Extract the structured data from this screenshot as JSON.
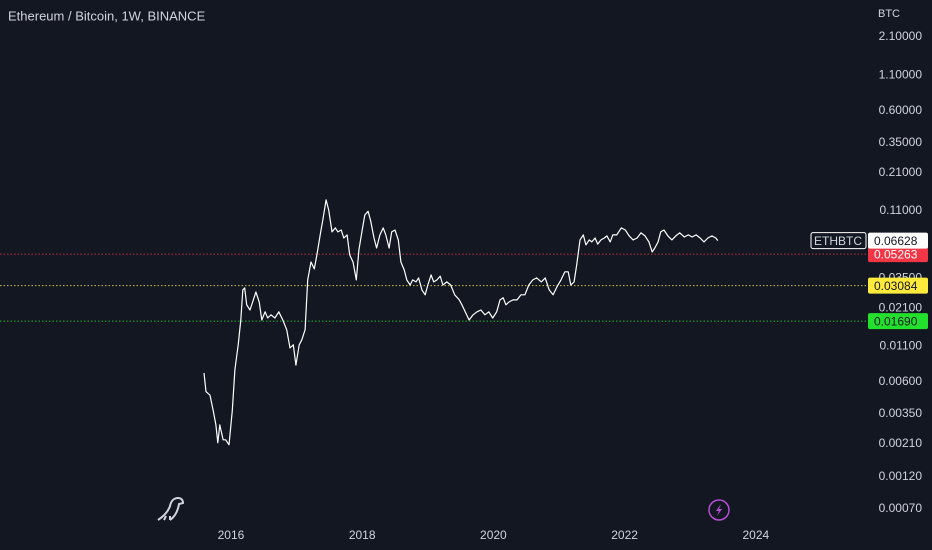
{
  "chart_data": {
    "type": "line",
    "title": "Ethereum / Bitcoin, 1W, BINANCE",
    "y_axis_label": "BTC",
    "log_scale": true,
    "grid": false,
    "xlim": [
      2012.48,
      2025.74
    ],
    "xticks": [
      2016,
      2018,
      2020,
      2022,
      2024
    ],
    "ylim": [
      0.00053,
      3.94
    ],
    "yticks": [
      {
        "value": 2.1,
        "label": "2.10000"
      },
      {
        "value": 1.1,
        "label": "1.10000"
      },
      {
        "value": 0.6,
        "label": "0.60000"
      },
      {
        "value": 0.35,
        "label": "0.35000"
      },
      {
        "value": 0.21,
        "label": "0.21000"
      },
      {
        "value": 0.11,
        "label": "0.11000"
      },
      {
        "value": 0.035,
        "label": "0.03500"
      },
      {
        "value": 0.021,
        "label": "0.02100"
      },
      {
        "value": 0.011,
        "label": "0.01100"
      },
      {
        "value": 0.006,
        "label": "0.00600"
      },
      {
        "value": 0.0035,
        "label": "0.00350"
      },
      {
        "value": 0.0021,
        "label": "0.00210"
      },
      {
        "value": 0.0012,
        "label": "0.00120"
      },
      {
        "value": 0.0007,
        "label": "0.00070"
      }
    ],
    "series": [
      {
        "name": "ETHBTC",
        "color": "#ffffff",
        "x": [
          2015.59,
          2015.62,
          2015.68,
          2015.73,
          2015.77,
          2015.8,
          2015.83,
          2015.88,
          2015.92,
          2015.97,
          2016.02,
          2016.06,
          2016.11,
          2016.15,
          2016.18,
          2016.21,
          2016.24,
          2016.29,
          2016.34,
          2016.38,
          2016.43,
          2016.47,
          2016.52,
          2016.56,
          2016.61,
          2016.67,
          2016.73,
          2016.79,
          2016.85,
          2016.9,
          2016.95,
          2016.99,
          2017.04,
          2017.08,
          2017.13,
          2017.17,
          2017.22,
          2017.27,
          2017.31,
          2017.36,
          2017.4,
          2017.45,
          2017.49,
          2017.54,
          2017.59,
          2017.63,
          2017.68,
          2017.72,
          2017.77,
          2017.81,
          2017.86,
          2017.91,
          2017.95,
          2018.0,
          2018.04,
          2018.09,
          2018.13,
          2018.18,
          2018.22,
          2018.27,
          2018.32,
          2018.36,
          2018.41,
          2018.45,
          2018.5,
          2018.55,
          2018.59,
          2018.64,
          2018.68,
          2018.73,
          2018.77,
          2018.82,
          2018.86,
          2018.91,
          2018.96,
          2019.0,
          2019.05,
          2019.09,
          2019.14,
          2019.19,
          2019.23,
          2019.29,
          2019.35,
          2019.41,
          2019.48,
          2019.52,
          2019.57,
          2019.63,
          2019.69,
          2019.75,
          2019.81,
          2019.87,
          2019.93,
          2019.99,
          2020.05,
          2020.1,
          2020.15,
          2020.19,
          2020.24,
          2020.3,
          2020.36,
          2020.42,
          2020.48,
          2020.54,
          2020.6,
          2020.66,
          2020.73,
          2020.79,
          2020.85,
          2020.91,
          2020.97,
          2021.03,
          2021.09,
          2021.14,
          2021.18,
          2021.23,
          2021.27,
          2021.32,
          2021.37,
          2021.41,
          2021.46,
          2021.5,
          2021.55,
          2021.59,
          2021.64,
          2021.69,
          2021.73,
          2021.78,
          2021.82,
          2021.88,
          2021.95,
          2022.01,
          2022.07,
          2022.13,
          2022.19,
          2022.25,
          2022.31,
          2022.37,
          2022.42,
          2022.46,
          2022.51,
          2022.55,
          2022.6,
          2022.66,
          2022.72,
          2022.78,
          2022.84,
          2022.91,
          2022.97,
          2023.03,
          2023.09,
          2023.15,
          2023.21,
          2023.27,
          2023.33,
          2023.39,
          2023.42
        ],
        "values": [
          0.007,
          0.0051,
          0.0048,
          0.0037,
          0.0029,
          0.00214,
          0.0029,
          0.00225,
          0.00225,
          0.00207,
          0.0037,
          0.0074,
          0.0113,
          0.0172,
          0.0287,
          0.0297,
          0.0223,
          0.0204,
          0.0242,
          0.0277,
          0.0234,
          0.0172,
          0.0198,
          0.0178,
          0.0188,
          0.0178,
          0.0198,
          0.0172,
          0.0146,
          0.0107,
          0.0113,
          0.008,
          0.0113,
          0.0123,
          0.0146,
          0.034,
          0.0461,
          0.041,
          0.052,
          0.073,
          0.0941,
          0.1322,
          0.1115,
          0.0768,
          0.0822,
          0.0768,
          0.0794,
          0.0693,
          0.073,
          0.052,
          0.0461,
          0.034,
          0.0566,
          0.0794,
          0.1024,
          0.109,
          0.0925,
          0.0693,
          0.0585,
          0.073,
          0.0822,
          0.073,
          0.0585,
          0.0768,
          0.0794,
          0.0671,
          0.0461,
          0.0403,
          0.034,
          0.0312,
          0.034,
          0.0329,
          0.0352,
          0.0287,
          0.0264,
          0.0312,
          0.037,
          0.0329,
          0.034,
          0.0363,
          0.0312,
          0.0329,
          0.0312,
          0.0264,
          0.0242,
          0.0223,
          0.0198,
          0.0172,
          0.0188,
          0.0198,
          0.0204,
          0.0188,
          0.0198,
          0.0178,
          0.0198,
          0.0242,
          0.0251,
          0.0223,
          0.0234,
          0.0242,
          0.0242,
          0.0264,
          0.0264,
          0.0312,
          0.034,
          0.0352,
          0.0329,
          0.0352,
          0.0287,
          0.0264,
          0.0303,
          0.034,
          0.039,
          0.039,
          0.0312,
          0.0329,
          0.0439,
          0.0671,
          0.073,
          0.0616,
          0.0671,
          0.0648,
          0.0693,
          0.0625,
          0.0671,
          0.0693,
          0.0718,
          0.0648,
          0.073,
          0.073,
          0.0822,
          0.0794,
          0.0718,
          0.0671,
          0.0693,
          0.0756,
          0.0718,
          0.0648,
          0.0547,
          0.0585,
          0.0648,
          0.0768,
          0.0794,
          0.0718,
          0.0671,
          0.0718,
          0.0756,
          0.0705,
          0.073,
          0.0705,
          0.073,
          0.0693,
          0.0648,
          0.0693,
          0.0718,
          0.0693,
          0.06628
        ]
      }
    ],
    "last_value": 0.06628,
    "levels": {
      "values": [
        0.05263,
        0.03084,
        0.0169
      ],
      "value_labels": [
        "0.05263",
        "0.03084",
        "0.01690"
      ],
      "colors": [
        "#f23645",
        "#ffeb3b",
        "#22e02b"
      ]
    }
  }
}
